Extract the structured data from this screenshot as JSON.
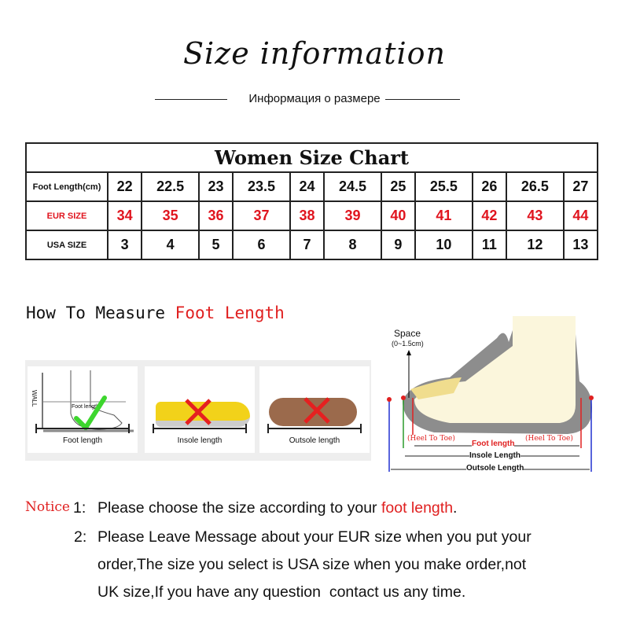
{
  "title": "Size information",
  "subtitle": "Информация о размере",
  "size_chart": {
    "caption": "Women Size Chart",
    "rows": [
      {
        "label": "Foot Length(cm)",
        "values": [
          "22",
          "22.5",
          "23",
          "23.5",
          "24",
          "24.5",
          "25",
          "25.5",
          "26",
          "26.5",
          "27"
        ],
        "color": "#111111"
      },
      {
        "label": "EUR SIZE",
        "values": [
          "34",
          "35",
          "36",
          "37",
          "38",
          "39",
          "40",
          "41",
          "42",
          "43",
          "44"
        ],
        "color": "#e0141e"
      },
      {
        "label": "USA SIZE",
        "values": [
          "3",
          "4",
          "5",
          "6",
          "7",
          "8",
          "9",
          "10",
          "11",
          "12",
          "13"
        ],
        "color": "#111111"
      }
    ]
  },
  "measure": {
    "heading_prefix": "How To Measure",
    "heading_highlight": "Foot Length",
    "cards": [
      {
        "label": "Foot length",
        "mark": "check",
        "wall": "WALL",
        "inner": "Foot length"
      },
      {
        "label": "Insole length",
        "mark": "cross"
      },
      {
        "label": "Outsole length",
        "mark": "cross"
      }
    ]
  },
  "diagram": {
    "space": "Space",
    "space_range": "(0~1.5cm)",
    "heel_to_toe": "(Heel To Toe)",
    "foot_length": "Foot length",
    "insole": "Insole Length",
    "outsole": "Outsole Length"
  },
  "notice": {
    "label": "Notice",
    "items": [
      {
        "num": "1:",
        "text": "Please choose the size according to your ",
        "highlight": "foot length",
        "end": "."
      },
      {
        "num": "2:",
        "lines": [
          "Please Leave Message about your EUR size when you put your",
          "order,The size you select is USA size when you make order,not",
          "UK size,If you have any question  contact us any time."
        ]
      }
    ]
  }
}
